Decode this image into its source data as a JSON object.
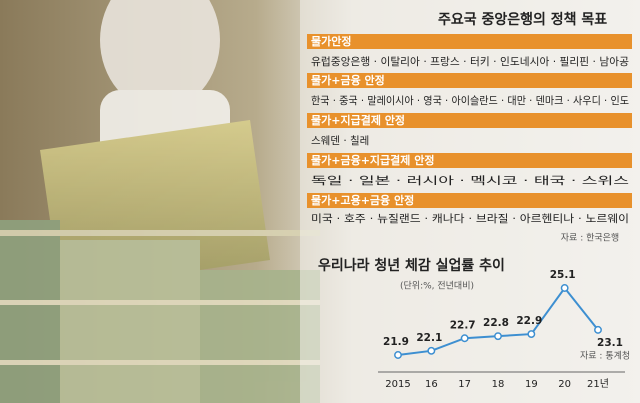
{
  "policy": {
    "title": "주요국 중앙은행의 정책 목표",
    "groups": [
      {
        "goal": "물가안정",
        "countries": "유럽중앙은행 · 이탈리아 · 프랑스 · 터키 · 인도네시아 · 필리핀 · 남아공"
      },
      {
        "goal": "물가+금융 안정",
        "countries": "한국 · 중국 · 말레이시아 · 영국 · 아이슬란드 · 대만 · 덴마크 · 사우디 · 인도"
      },
      {
        "goal": "물가+지급결제 안정",
        "countries": "스웨덴 · 칠레"
      },
      {
        "goal": "물가+금융+지급결제 안정",
        "countries": "독일 · 일본 · 러시아 · 멕시코 · 태국 · 스위스"
      },
      {
        "goal": "물가+고용+금융 안정",
        "countries": "미국 · 호주 · 뉴질랜드 · 캐나다 · 브라질 · 아르헨티나 · 노르웨이"
      }
    ],
    "source": "자료 : 한국은행"
  },
  "chart_data": {
    "type": "line",
    "title": "우리나라 청년 체감 실업률 추이",
    "subtitle": "(단위:%, 전년대비)",
    "categories": [
      "2015",
      "16",
      "17",
      "18",
      "19",
      "20",
      "21년"
    ],
    "values": [
      21.9,
      22.1,
      22.7,
      22.8,
      22.9,
      25.1,
      23.1
    ],
    "color": "#3d8fd1",
    "source": "자료 : 통계청"
  }
}
